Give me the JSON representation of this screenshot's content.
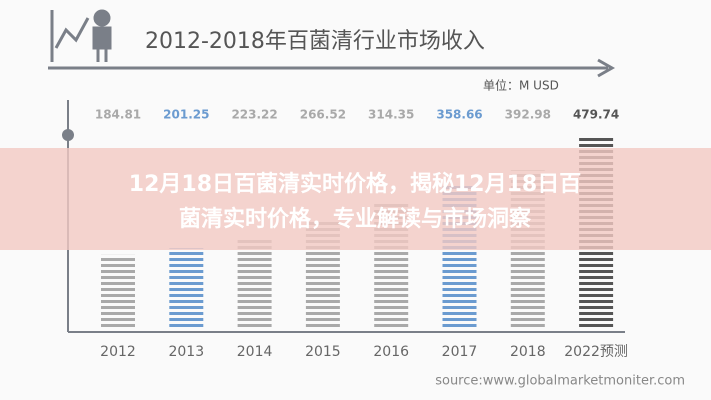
{
  "chart_data": {
    "type": "bar",
    "title": "2012-2018年百菌清行业市场收入",
    "unit_label": "单位：M USD",
    "source": "source:www.globalmarketmoniter.com",
    "categories": [
      "2012",
      "2013",
      "2014",
      "2015",
      "2016",
      "2017",
      "2018",
      "2022预测"
    ],
    "values": [
      184.81,
      201.25,
      223.22,
      266.52,
      314.35,
      358.66,
      392.98,
      479.74
    ],
    "colors": [
      "#a9a9a9",
      "#6b9bd0",
      "#a9a9a9",
      "#a9a9a9",
      "#a9a9a9",
      "#6b9bd0",
      "#a9a9a9",
      "#555555"
    ]
  },
  "overlay": {
    "title_lines": [
      "12月18日百菌清实时价格，揭秘12月18日百",
      "菌清实时价格，专业解读与市场洞察"
    ]
  }
}
